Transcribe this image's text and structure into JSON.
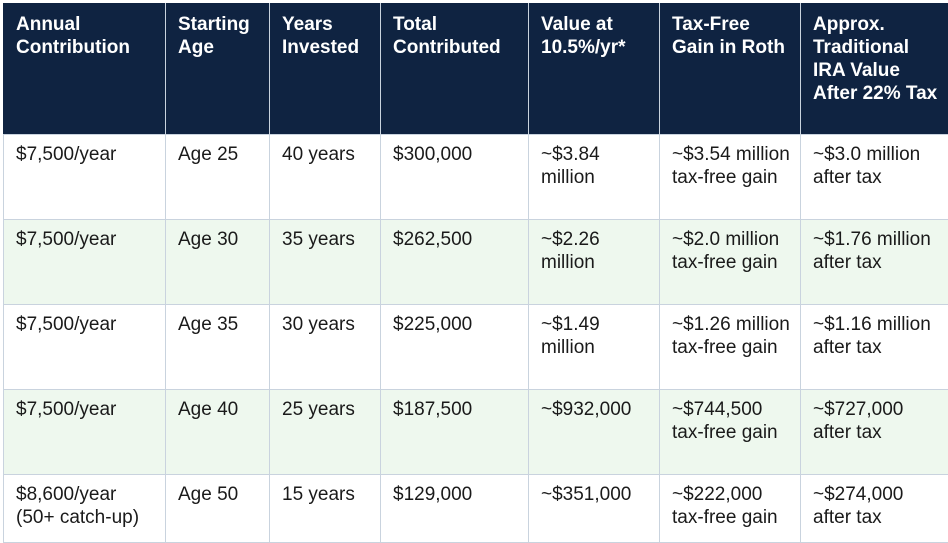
{
  "table": {
    "headers": [
      "Annual Contribution",
      "Starting Age",
      "Years Invested",
      "Total Contributed",
      "Value at 10.5%/yr*",
      "Tax-Free Gain in Roth",
      "Approx. Traditional IRA Value After 22% Tax"
    ],
    "rows": [
      [
        "$7,500/year",
        "Age 25",
        "40 years",
        "$300,000",
        "~$3.84 million",
        "~$3.54 million tax-free gain",
        "~$3.0 million after tax"
      ],
      [
        "$7,500/year",
        "Age 30",
        "35 years",
        "$262,500",
        "~$2.26 million",
        "~$2.0 million tax-free gain",
        "~$1.76 million after tax"
      ],
      [
        "$7,500/year",
        "Age 35",
        "30 years",
        "$225,000",
        "~$1.49 million",
        "~$1.26 million tax-free gain",
        "~$1.16 million after tax"
      ],
      [
        "$7,500/year",
        "Age 40",
        "25 years",
        "$187,500",
        "~$932,000",
        "~$744,500 tax-free gain",
        "~$727,000 after tax"
      ],
      [
        "$8,600/year (50+ catch-up)",
        "Age 50",
        "15 years",
        "$129,000",
        "~$351,000",
        "~$222,000 tax-free gain",
        "~$274,000 after tax"
      ]
    ]
  },
  "colors": {
    "header_bg": "#0f2341",
    "header_text": "#ffffff",
    "row_alt_bg": "#eef8ee",
    "border": "#c9d3de"
  }
}
